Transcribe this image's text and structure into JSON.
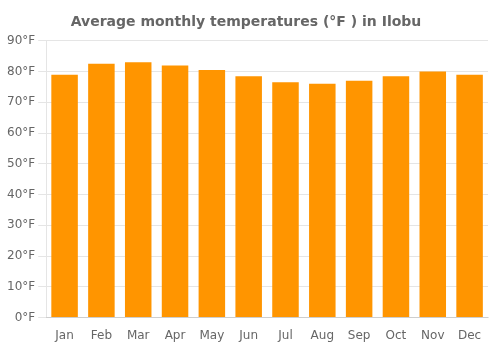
{
  "chart_data": {
    "type": "bar",
    "title": "Average monthly temperatures (°F ) in Ilobu",
    "categories": [
      "Jan",
      "Feb",
      "Mar",
      "Apr",
      "May",
      "Jun",
      "Jul",
      "Aug",
      "Sep",
      "Oct",
      "Nov",
      "Dec"
    ],
    "values": [
      79,
      82.5,
      83,
      82,
      80.5,
      78.5,
      76.5,
      76,
      77,
      78.5,
      80,
      79
    ],
    "color": "#FF9500",
    "ylim": [
      0,
      90
    ],
    "yticks": [
      {
        "value": 0,
        "label": "0°F"
      },
      {
        "value": 10,
        "label": "10°F"
      },
      {
        "value": 20,
        "label": "20°F"
      },
      {
        "value": 30,
        "label": "30°F"
      },
      {
        "value": 40,
        "label": "40°F"
      },
      {
        "value": 50,
        "label": "50°F"
      },
      {
        "value": 60,
        "label": "60°F"
      },
      {
        "value": 70,
        "label": "70°F"
      },
      {
        "value": 80,
        "label": "80°F"
      },
      {
        "value": 90,
        "label": "90°F"
      }
    ],
    "grid": true
  }
}
